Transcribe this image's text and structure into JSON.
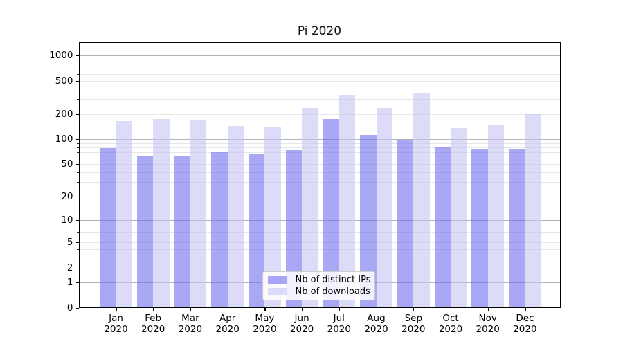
{
  "chart_data": {
    "type": "bar",
    "title": "Pi 2020",
    "categories": [
      "Jan",
      "Feb",
      "Mar",
      "Apr",
      "May",
      "Jun",
      "Jul",
      "Aug",
      "Sep",
      "Oct",
      "Nov",
      "Dec"
    ],
    "year": "2020",
    "series": [
      {
        "name": "Nb of distinct IPs",
        "key": "distinct-ips",
        "color": "rgba(110,110,238,0.6)",
        "values": [
          78,
          62,
          63,
          69,
          66,
          73,
          175,
          112,
          98,
          81,
          75,
          76
        ]
      },
      {
        "name": "Nb of downloads",
        "key": "downloads",
        "color": "rgba(197,197,245,0.6)",
        "values": [
          165,
          175,
          172,
          145,
          138,
          235,
          330,
          235,
          350,
          135,
          150,
          200
        ]
      }
    ],
    "yticks": [
      0,
      1,
      2,
      5,
      10,
      20,
      50,
      100,
      200,
      500,
      1000
    ],
    "y_scale": "log10(1+y)",
    "ylim": [
      0,
      1430
    ],
    "xlabel": "",
    "ylabel": "",
    "grid": "horizontal major+minor",
    "legend_position": "lower center inside"
  }
}
